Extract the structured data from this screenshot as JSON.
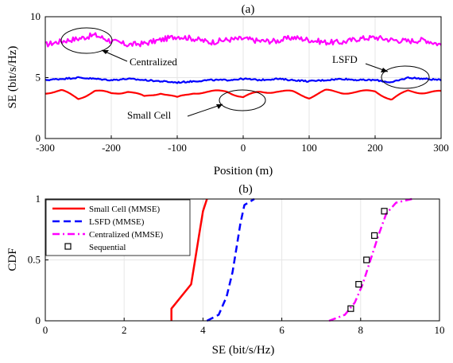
{
  "chart_data": [
    {
      "type": "line",
      "title": "(a)",
      "xlabel": "Position (m)",
      "ylabel": "SE (bit/s/Hz)",
      "xlim": [
        -300,
        300
      ],
      "ylim": [
        0,
        10
      ],
      "xticks": [
        "-300",
        "-200",
        "-100",
        "0",
        "100",
        "200",
        "300"
      ],
      "yticks": [
        "0",
        "5",
        "10"
      ],
      "grid": true,
      "series": [
        {
          "name": "Centralized",
          "color": "#ff00ff",
          "x": [
            -300,
            -275,
            -250,
            -225,
            -200,
            -175,
            -150,
            -125,
            -100,
            -75,
            -50,
            -25,
            0,
            25,
            50,
            75,
            100,
            125,
            150,
            175,
            200,
            225,
            250,
            275,
            300
          ],
          "values": [
            7.7,
            8.0,
            8.2,
            8.5,
            8.0,
            7.7,
            7.8,
            8.1,
            8.4,
            8.2,
            7.9,
            8.1,
            8.2,
            8.0,
            8.0,
            8.3,
            8.1,
            7.9,
            7.9,
            8.2,
            8.3,
            8.1,
            8.0,
            8.1,
            7.7
          ]
        },
        {
          "name": "LSFD",
          "color": "#0000ff",
          "x": [
            -300,
            -275,
            -250,
            -225,
            -200,
            -175,
            -150,
            -125,
            -100,
            -75,
            -50,
            -25,
            0,
            25,
            50,
            75,
            100,
            125,
            150,
            175,
            200,
            225,
            250,
            275,
            300
          ],
          "values": [
            4.8,
            4.9,
            5.0,
            4.9,
            4.8,
            4.9,
            4.8,
            4.7,
            4.6,
            4.7,
            4.8,
            4.8,
            4.9,
            4.8,
            4.9,
            4.8,
            4.7,
            4.8,
            4.9,
            4.8,
            4.8,
            4.6,
            5.0,
            4.9,
            4.8
          ]
        },
        {
          "name": "Small Cell",
          "color": "#ff0000",
          "x": [
            -300,
            -275,
            -250,
            -225,
            -200,
            -175,
            -150,
            -125,
            -100,
            -75,
            -50,
            -25,
            0,
            25,
            50,
            75,
            100,
            125,
            150,
            175,
            200,
            225,
            250,
            275,
            300
          ],
          "values": [
            3.8,
            3.9,
            3.3,
            3.9,
            3.7,
            3.9,
            3.4,
            3.8,
            3.3,
            3.8,
            3.8,
            3.9,
            3.4,
            3.8,
            3.9,
            3.8,
            3.4,
            3.9,
            3.8,
            3.8,
            3.9,
            3.2,
            3.9,
            3.8,
            3.8
          ]
        }
      ],
      "annotations": [
        "Centralized",
        "LSFD",
        "Small Cell"
      ]
    },
    {
      "type": "line",
      "title": "(b)",
      "xlabel": "SE (bit/s/Hz)",
      "ylabel": "CDF",
      "xlim": [
        0,
        10
      ],
      "ylim": [
        0,
        1
      ],
      "xticks": [
        "0",
        "2",
        "4",
        "6",
        "8",
        "10"
      ],
      "yticks": [
        "0",
        "0.5",
        "1"
      ],
      "grid": true,
      "legend": "top-left",
      "series": [
        {
          "name": "Small Cell (MMSE)",
          "color": "#ff0000",
          "style": "solid",
          "x": [
            3.2,
            3.2,
            3.45,
            3.7,
            3.8,
            3.9,
            4.0,
            4.1
          ],
          "values": [
            0,
            0.1,
            0.2,
            0.3,
            0.5,
            0.7,
            0.9,
            1.0
          ]
        },
        {
          "name": "LSFD (MMSE)",
          "color": "#0000ff",
          "style": "dashed",
          "x": [
            4.1,
            4.4,
            4.6,
            4.75,
            4.85,
            4.95,
            5.05,
            5.3
          ],
          "values": [
            0,
            0.05,
            0.2,
            0.4,
            0.6,
            0.8,
            0.95,
            1.0
          ]
        },
        {
          "name": "Centralized (MMSE)",
          "color": "#ff00ff",
          "style": "dashdot",
          "x": [
            7.2,
            7.6,
            7.85,
            8.05,
            8.25,
            8.45,
            8.65,
            8.9,
            9.3
          ],
          "values": [
            0,
            0.05,
            0.15,
            0.3,
            0.5,
            0.7,
            0.88,
            0.97,
            1.0
          ]
        },
        {
          "name": "Sequential",
          "color": "#000000",
          "style": "marker-square",
          "x": [
            7.75,
            7.95,
            8.15,
            8.35,
            8.6
          ],
          "values": [
            0.1,
            0.3,
            0.5,
            0.7,
            0.9
          ]
        }
      ]
    }
  ]
}
